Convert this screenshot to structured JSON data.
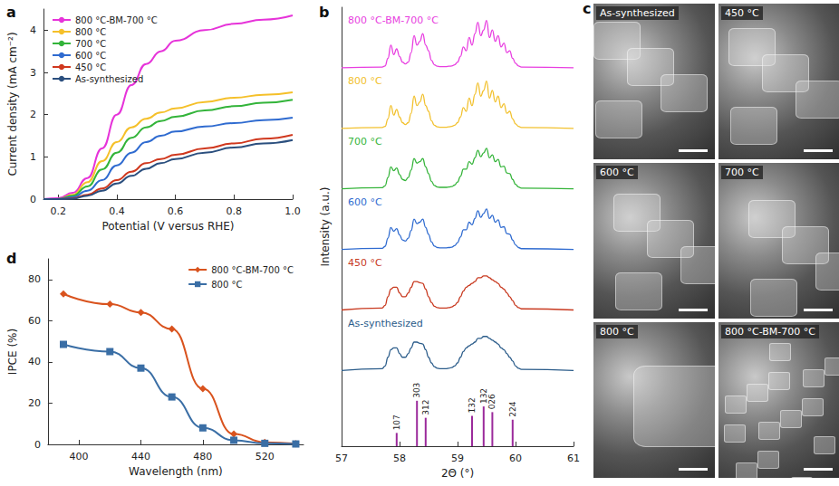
{
  "chart_data": [
    {
      "panel": "a",
      "type": "line",
      "x_label": "Potential (V versus RHE)",
      "y_label": "Current density (mA cm⁻²)",
      "x": [
        0.15,
        0.2,
        0.25,
        0.3,
        0.35,
        0.4,
        0.45,
        0.5,
        0.55,
        0.6,
        0.7,
        0.8,
        0.9,
        1.0
      ],
      "series": [
        {
          "name": "800 °C-BM-700 °C",
          "color": "#e633d9",
          "values": [
            0,
            0.02,
            0.15,
            0.5,
            1.2,
            2.0,
            2.7,
            3.2,
            3.5,
            3.75,
            4.0,
            4.15,
            4.25,
            4.35
          ]
        },
        {
          "name": "800 °C",
          "color": "#f5c02a",
          "values": [
            0,
            0,
            0.1,
            0.4,
            0.9,
            1.35,
            1.7,
            1.9,
            2.05,
            2.15,
            2.3,
            2.4,
            2.47,
            2.53
          ]
        },
        {
          "name": "700 °C",
          "color": "#33b43a",
          "values": [
            0,
            0,
            0.08,
            0.3,
            0.7,
            1.1,
            1.45,
            1.7,
            1.85,
            1.95,
            2.1,
            2.2,
            2.28,
            2.35
          ]
        },
        {
          "name": "600 °C",
          "color": "#2f6bd0",
          "values": [
            0,
            0,
            0.05,
            0.2,
            0.45,
            0.8,
            1.1,
            1.35,
            1.5,
            1.6,
            1.72,
            1.8,
            1.87,
            1.93
          ]
        },
        {
          "name": "450 °C",
          "color": "#d0381e",
          "values": [
            0,
            0,
            0.02,
            0.1,
            0.25,
            0.45,
            0.65,
            0.85,
            0.95,
            1.05,
            1.2,
            1.32,
            1.43,
            1.52
          ]
        },
        {
          "name": "As-synthesized",
          "color": "#2b4f7e",
          "values": [
            0,
            0,
            0.01,
            0.08,
            0.2,
            0.37,
            0.55,
            0.72,
            0.85,
            0.95,
            1.1,
            1.22,
            1.32,
            1.4
          ]
        }
      ],
      "xlim": [
        0.15,
        1.0
      ],
      "xticks": [
        0.2,
        0.4,
        0.6,
        0.8,
        {
          "value": 1,
          "label": "1.0"
        }
      ],
      "ylim": [
        0,
        4.5
      ],
      "yticks": [
        0,
        1,
        2,
        3,
        4
      ],
      "grid": false,
      "legend": "upper left"
    },
    {
      "panel": "b",
      "type": "line",
      "x_label": "2Θ (°)",
      "y_label": "Intensity (a.u.)",
      "x": [
        57.0,
        57.7,
        57.75,
        57.8,
        57.85,
        57.9,
        57.95,
        58.0,
        58.05,
        58.1,
        58.15,
        58.2,
        58.25,
        58.3,
        58.35,
        58.4,
        58.45,
        58.5,
        58.55,
        58.6,
        58.65,
        58.7,
        58.75,
        58.8,
        58.85,
        58.9,
        58.95,
        59.0,
        59.05,
        59.1,
        59.15,
        59.2,
        59.25,
        59.3,
        59.35,
        59.4,
        59.45,
        59.5,
        59.55,
        59.6,
        59.65,
        59.7,
        59.75,
        59.8,
        59.85,
        59.9,
        59.95,
        60.0,
        60.05,
        60.1,
        61.0
      ],
      "series": [
        {
          "name": "As-synthesized",
          "color": "#2b5c8a",
          "values": [
            2.0,
            2.05,
            2.12,
            2.35,
            2.55,
            2.6,
            2.6,
            2.45,
            2.35,
            2.35,
            2.45,
            2.6,
            2.75,
            2.75,
            2.72,
            2.7,
            2.55,
            2.35,
            2.2,
            2.1,
            2.06,
            2.05,
            2.05,
            2.05,
            2.06,
            2.08,
            2.12,
            2.2,
            2.35,
            2.5,
            2.6,
            2.65,
            2.7,
            2.75,
            2.85,
            2.85,
            2.9,
            2.9,
            2.85,
            2.8,
            2.75,
            2.7,
            2.6,
            2.55,
            2.45,
            2.35,
            2.25,
            2.12,
            2.06,
            2.03,
            2.0
          ]
        },
        {
          "name": "450 °C",
          "color": "#c8391f",
          "values": [
            3.6,
            3.65,
            3.72,
            3.95,
            4.15,
            4.2,
            4.2,
            4.05,
            3.95,
            3.95,
            4.05,
            4.2,
            4.35,
            4.35,
            4.32,
            4.3,
            4.15,
            3.95,
            3.8,
            3.7,
            3.66,
            3.65,
            3.65,
            3.65,
            3.66,
            3.68,
            3.72,
            3.8,
            3.95,
            4.1,
            4.2,
            4.25,
            4.3,
            4.35,
            4.45,
            4.45,
            4.5,
            4.5,
            4.45,
            4.4,
            4.35,
            4.3,
            4.2,
            4.15,
            4.05,
            3.95,
            3.85,
            3.72,
            3.66,
            3.63,
            3.6
          ]
        },
        {
          "name": "600 °C",
          "color": "#2f6bd0",
          "values": [
            5.2,
            5.23,
            5.28,
            5.5,
            5.78,
            5.68,
            5.75,
            5.58,
            5.45,
            5.42,
            5.5,
            5.7,
            6.0,
            5.88,
            5.92,
            6.0,
            5.78,
            5.6,
            5.4,
            5.29,
            5.25,
            5.24,
            5.24,
            5.24,
            5.25,
            5.26,
            5.3,
            5.38,
            5.53,
            5.72,
            5.72,
            5.92,
            5.85,
            6.02,
            6.22,
            6.05,
            6.15,
            6.27,
            6.02,
            6.1,
            5.92,
            5.98,
            5.78,
            5.8,
            5.62,
            5.6,
            5.45,
            5.32,
            5.25,
            5.22,
            5.2
          ]
        },
        {
          "name": "700 °C",
          "color": "#35b43a",
          "values": [
            6.8,
            6.83,
            6.88,
            7.1,
            7.38,
            7.28,
            7.35,
            7.18,
            7.05,
            7.02,
            7.1,
            7.3,
            7.6,
            7.48,
            7.52,
            7.6,
            7.38,
            7.2,
            7.0,
            6.89,
            6.85,
            6.84,
            6.84,
            6.84,
            6.85,
            6.86,
            6.9,
            6.98,
            7.13,
            7.32,
            7.32,
            7.52,
            7.45,
            7.62,
            7.82,
            7.65,
            7.75,
            7.87,
            7.62,
            7.7,
            7.52,
            7.58,
            7.38,
            7.4,
            7.22,
            7.2,
            7.05,
            6.92,
            6.85,
            6.82,
            6.8
          ]
        },
        {
          "name": "800 °C",
          "color": "#f2c12e",
          "values": [
            8.4,
            8.42,
            8.45,
            8.65,
            9.0,
            8.75,
            8.9,
            8.7,
            8.55,
            8.5,
            8.55,
            8.8,
            9.25,
            9.0,
            9.1,
            9.3,
            9.0,
            8.85,
            8.6,
            8.48,
            8.44,
            8.43,
            8.43,
            8.43,
            8.44,
            8.45,
            8.48,
            8.55,
            8.7,
            8.95,
            8.85,
            9.2,
            9.0,
            9.3,
            9.6,
            9.25,
            9.4,
            9.65,
            9.2,
            9.4,
            9.1,
            9.25,
            8.95,
            9.05,
            8.8,
            8.85,
            8.65,
            8.52,
            8.45,
            8.42,
            8.4
          ]
        },
        {
          "name": "800 °C-BM-700 °C",
          "color": "#e83ee0",
          "values": [
            10.0,
            10.02,
            10.05,
            10.25,
            10.6,
            10.35,
            10.5,
            10.3,
            10.15,
            10.1,
            10.15,
            10.4,
            10.85,
            10.6,
            10.7,
            10.9,
            10.6,
            10.45,
            10.2,
            10.08,
            10.04,
            10.03,
            10.03,
            10.03,
            10.04,
            10.05,
            10.08,
            10.15,
            10.3,
            10.55,
            10.45,
            10.8,
            10.6,
            10.9,
            11.2,
            10.85,
            11.0,
            11.25,
            10.8,
            11.0,
            10.7,
            10.85,
            10.55,
            10.65,
            10.4,
            10.45,
            10.25,
            10.12,
            10.05,
            10.02,
            10.0
          ]
        },
        {
          "type": "bar",
          "color": "#9b2a9b",
          "x": [
            57.95,
            58.3,
            58.45,
            59.25,
            59.45,
            59.6,
            59.95
          ],
          "values": [
            0.35,
            1.2,
            0.75,
            0.8,
            1.05,
            0.9,
            0.7
          ],
          "labels": [
            "107",
            "303",
            "312",
            "1̄32",
            "132",
            "026",
            "224"
          ]
        }
      ],
      "xlim": [
        57,
        61
      ],
      "xticks": [
        57,
        58,
        59,
        60,
        61
      ],
      "ylim": [
        0,
        11.6
      ],
      "grid": false,
      "tick_labels": "x"
    },
    {
      "panel": "c",
      "type": "images",
      "labels": [
        "As-synthesized",
        "450 °C",
        "600 °C",
        "700 °C",
        "800 °C",
        "800 °C-BM-700 °C"
      ]
    },
    {
      "panel": "d",
      "type": "line",
      "x_label": "Wavelength (nm)",
      "y_label": "IPCE (%)",
      "x": [
        390,
        420,
        440,
        460,
        480,
        500,
        520,
        540
      ],
      "series": [
        {
          "name": "800 °C-BM-700 °C",
          "color": "#d9531e",
          "marker": "diamond",
          "values": [
            73,
            68,
            64,
            56,
            27,
            5,
            1,
            0.3
          ]
        },
        {
          "name": "800 °C",
          "color": "#3a6ea5",
          "marker": "square",
          "values": [
            48.5,
            45,
            37,
            23,
            8,
            2,
            0.5,
            0.2
          ]
        }
      ],
      "xlim": [
        380,
        545
      ],
      "xticks": [
        400,
        440,
        480,
        520
      ],
      "ylim": [
        0,
        90
      ],
      "yticks": [
        0,
        20,
        40,
        60,
        80
      ],
      "grid": false,
      "legend": "upper right"
    }
  ]
}
